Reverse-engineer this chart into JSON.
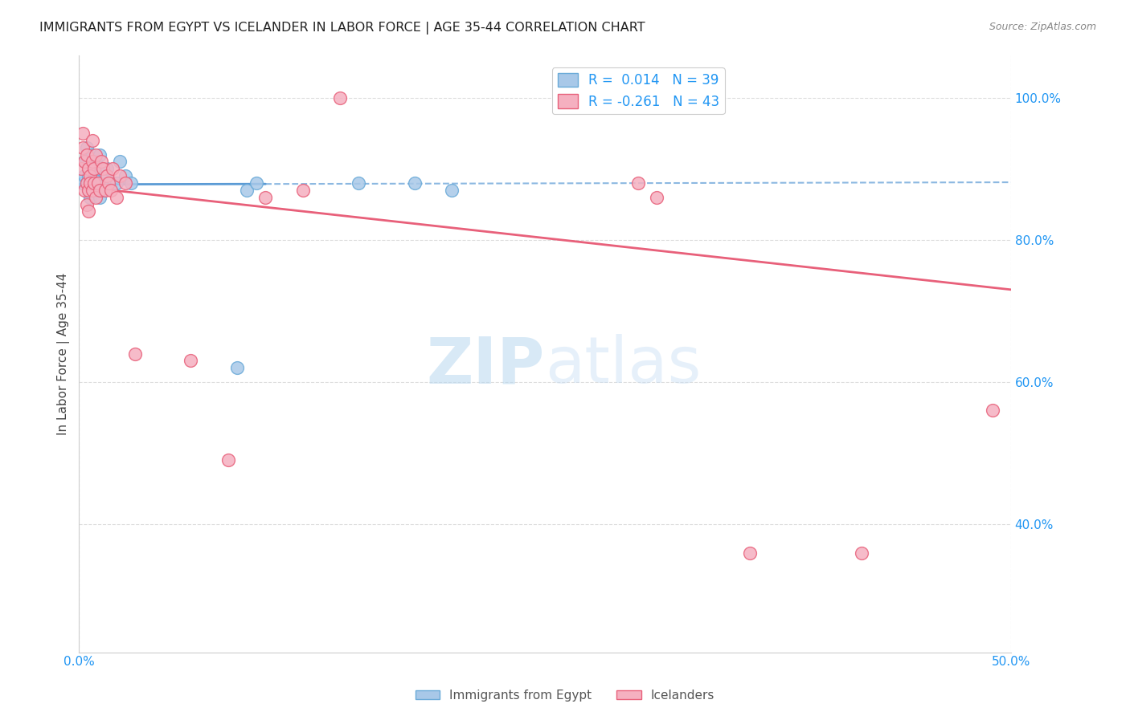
{
  "title": "IMMIGRANTS FROM EGYPT VS ICELANDER IN LABOR FORCE | AGE 35-44 CORRELATION CHART",
  "source": "Source: ZipAtlas.com",
  "ylabel": "In Labor Force | Age 35-44",
  "xlim": [
    0.0,
    0.5
  ],
  "ylim": [
    0.22,
    1.06
  ],
  "egypt_R": 0.014,
  "egypt_N": 39,
  "iceland_R": -0.261,
  "iceland_N": 43,
  "egypt_color": "#a8c8e8",
  "iceland_color": "#f5b0c0",
  "egypt_line_color": "#5b9bd5",
  "iceland_line_color": "#e8607a",
  "egypt_marker_edge": "#6aaad8",
  "iceland_marker_edge": "#e8607a",
  "legend_R_color": "#2196F3",
  "egypt_scatter_x": [
    0.002,
    0.003,
    0.003,
    0.004,
    0.004,
    0.004,
    0.005,
    0.005,
    0.005,
    0.006,
    0.006,
    0.006,
    0.007,
    0.007,
    0.007,
    0.007,
    0.008,
    0.008,
    0.008,
    0.009,
    0.009,
    0.01,
    0.01,
    0.011,
    0.011,
    0.012,
    0.013,
    0.014,
    0.015,
    0.02,
    0.022,
    0.025,
    0.028,
    0.085,
    0.09,
    0.095,
    0.15,
    0.18,
    0.2
  ],
  "egypt_scatter_y": [
    0.88,
    0.91,
    0.89,
    0.93,
    0.91,
    0.88,
    0.9,
    0.87,
    0.89,
    0.86,
    0.9,
    0.88,
    0.92,
    0.88,
    0.91,
    0.87,
    0.9,
    0.89,
    0.88,
    0.91,
    0.87,
    0.9,
    0.88,
    0.92,
    0.86,
    0.88,
    0.87,
    0.89,
    0.9,
    0.88,
    0.91,
    0.89,
    0.88,
    0.62,
    0.87,
    0.88,
    0.88,
    0.88,
    0.87
  ],
  "iceland_scatter_x": [
    0.001,
    0.002,
    0.002,
    0.003,
    0.003,
    0.004,
    0.004,
    0.004,
    0.005,
    0.005,
    0.005,
    0.006,
    0.006,
    0.007,
    0.007,
    0.007,
    0.008,
    0.008,
    0.009,
    0.009,
    0.01,
    0.011,
    0.012,
    0.013,
    0.014,
    0.015,
    0.016,
    0.017,
    0.018,
    0.02,
    0.022,
    0.025,
    0.03,
    0.06,
    0.08,
    0.1,
    0.12,
    0.14,
    0.3,
    0.31,
    0.36,
    0.42,
    0.49
  ],
  "iceland_scatter_y": [
    0.9,
    0.95,
    0.93,
    0.91,
    0.87,
    0.92,
    0.88,
    0.85,
    0.9,
    0.87,
    0.84,
    0.89,
    0.88,
    0.94,
    0.91,
    0.87,
    0.9,
    0.88,
    0.86,
    0.92,
    0.88,
    0.87,
    0.91,
    0.9,
    0.87,
    0.89,
    0.88,
    0.87,
    0.9,
    0.86,
    0.89,
    0.88,
    0.64,
    0.63,
    0.49,
    0.86,
    0.87,
    1.0,
    0.88,
    0.86,
    0.36,
    0.36,
    0.56
  ],
  "egypt_line_x0": 0.0,
  "egypt_line_x1": 0.5,
  "egypt_line_y0": 0.878,
  "egypt_line_y1": 0.881,
  "iceland_line_x0": 0.0,
  "iceland_line_x1": 0.5,
  "iceland_line_y0": 0.875,
  "iceland_line_y1": 0.73,
  "watermark_zip": "ZIP",
  "watermark_atlas": "atlas",
  "background_color": "#ffffff",
  "grid_color": "#dddddd",
  "right_yticks": [
    0.4,
    0.6,
    0.8,
    1.0
  ],
  "right_ytick_labels": [
    "40.0%",
    "60.0%",
    "80.0%",
    "100.0%"
  ]
}
